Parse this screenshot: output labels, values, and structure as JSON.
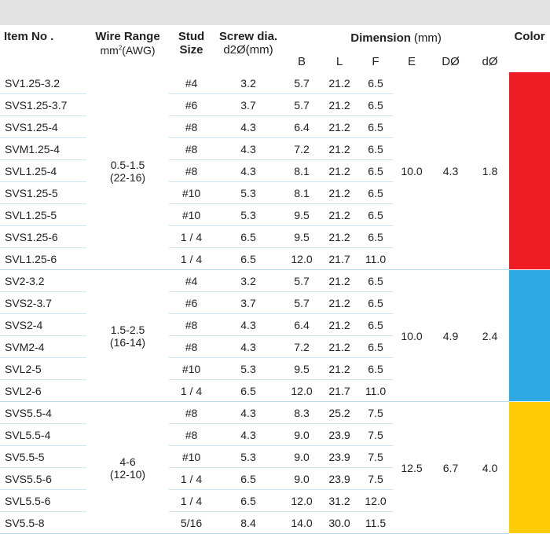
{
  "header": {
    "item_no": "Item No .",
    "wire_range": "Wire Range",
    "wire_range_unit_pre": "mm",
    "wire_range_unit_sup": "2",
    "wire_range_unit_post": "(AWG)",
    "stud_line1": "Stud",
    "stud_line2": "Size",
    "screw_line1": "Screw dia.",
    "screw_line2": "d2Ø(mm)",
    "dimension": "Dimension",
    "dimension_unit": "(mm)",
    "color": "Color",
    "sub_b": "B",
    "sub_l": "L",
    "sub_f": "F",
    "sub_e": "E",
    "sub_d_big": "DØ",
    "sub_d_small": "dØ"
  },
  "groups": [
    {
      "wire_range_line1": "0.5-1.5",
      "wire_range_line2": "(22-16)",
      "E": "10.0",
      "D": "4.3",
      "d": "1.8",
      "color_hex": "#ee1c25",
      "rows": [
        {
          "item": "SV1.25-3.2",
          "stud": "#4",
          "screw": "3.2",
          "B": "5.7",
          "L": "21.2",
          "F": "6.5"
        },
        {
          "item": "SVS1.25-3.7",
          "stud": "#6",
          "screw": "3.7",
          "B": "5.7",
          "L": "21.2",
          "F": "6.5"
        },
        {
          "item": "SVS1.25-4",
          "stud": "#8",
          "screw": "4.3",
          "B": "6.4",
          "L": "21.2",
          "F": "6.5"
        },
        {
          "item": "SVM1.25-4",
          "stud": "#8",
          "screw": "4.3",
          "B": "7.2",
          "L": "21.2",
          "F": "6.5"
        },
        {
          "item": "SVL1.25-4",
          "stud": "#8",
          "screw": "4.3",
          "B": "8.1",
          "L": "21.2",
          "F": "6.5"
        },
        {
          "item": "SVS1.25-5",
          "stud": "#10",
          "screw": "5.3",
          "B": "8.1",
          "L": "21.2",
          "F": "6.5"
        },
        {
          "item": "SVL1.25-5",
          "stud": "#10",
          "screw": "5.3",
          "B": "9.5",
          "L": "21.2",
          "F": "6.5"
        },
        {
          "item": "SVS1.25-6",
          "stud": "1 / 4",
          "screw": "6.5",
          "B": "9.5",
          "L": "21.2",
          "F": "6.5"
        },
        {
          "item": "SVL1.25-6",
          "stud": "1 / 4",
          "screw": "6.5",
          "B": "12.0",
          "L": "21.7",
          "F": "11.0"
        }
      ]
    },
    {
      "wire_range_line1": "1.5-2.5",
      "wire_range_line2": "(16-14)",
      "E": "10.0",
      "D": "4.9",
      "d": "2.4",
      "color_hex": "#2ea9e1",
      "rows": [
        {
          "item": "SV2-3.2",
          "stud": "#4",
          "screw": "3.2",
          "B": "5.7",
          "L": "21.2",
          "F": "6.5"
        },
        {
          "item": "SVS2-3.7",
          "stud": "#6",
          "screw": "3.7",
          "B": "5.7",
          "L": "21.2",
          "F": "6.5"
        },
        {
          "item": "SVS2-4",
          "stud": "#8",
          "screw": "4.3",
          "B": "6.4",
          "L": "21.2",
          "F": "6.5"
        },
        {
          "item": "SVM2-4",
          "stud": "#8",
          "screw": "4.3",
          "B": "7.2",
          "L": "21.2",
          "F": "6.5"
        },
        {
          "item": "SVL2-5",
          "stud": "#10",
          "screw": "5.3",
          "B": "9.5",
          "L": "21.2",
          "F": "6.5"
        },
        {
          "item": "SVL2-6",
          "stud": "1 / 4",
          "screw": "6.5",
          "B": "12.0",
          "L": "21.7",
          "F": "11.0"
        }
      ]
    },
    {
      "wire_range_line1": "4-6",
      "wire_range_line2": "(12-10)",
      "E": "12.5",
      "D": "6.7",
      "d": "4.0",
      "color_hex": "#ffcb05",
      "rows": [
        {
          "item": "SVS5.5-4",
          "stud": "#8",
          "screw": "4.3",
          "B": "8.3",
          "L": "25.2",
          "F": "7.5"
        },
        {
          "item": "SVL5.5-4",
          "stud": "#8",
          "screw": "4.3",
          "B": "9.0",
          "L": "23.9",
          "F": "7.5"
        },
        {
          "item": "SV5.5-5",
          "stud": "#10",
          "screw": "5.3",
          "B": "9.0",
          "L": "23.9",
          "F": "7.5"
        },
        {
          "item": "SVS5.5-6",
          "stud": "1 / 4",
          "screw": "6.5",
          "B": "9.0",
          "L": "23.9",
          "F": "7.5"
        },
        {
          "item": "SVL5.5-6",
          "stud": "1 / 4",
          "screw": "6.5",
          "B": "12.0",
          "L": "31.2",
          "F": "12.0"
        },
        {
          "item": "SV5.5-8",
          "stud": "5/16",
          "screw": "8.4",
          "B": "14.0",
          "L": "30.0",
          "F": "11.5"
        }
      ]
    }
  ]
}
